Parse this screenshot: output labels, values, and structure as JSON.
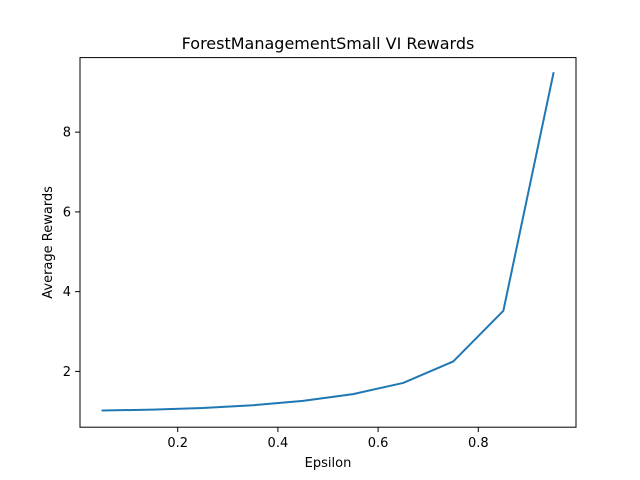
{
  "chart_data": {
    "type": "line",
    "title": "ForestManagementSmall VI Rewards",
    "xlabel": "Epsilon",
    "ylabel": "Average Rewards",
    "xlim": [
      0.005,
      0.995
    ],
    "ylim": [
      0.6,
      9.87
    ],
    "xticks": [
      0.2,
      0.4,
      0.6,
      0.8
    ],
    "xtick_labels": [
      "0.2",
      "0.4",
      "0.6",
      "0.8"
    ],
    "yticks": [
      2,
      4,
      6,
      8
    ],
    "ytick_labels": [
      "2",
      "4",
      "6",
      "8"
    ],
    "grid": false,
    "legend": "none",
    "series": [
      {
        "color": "#1f77b4",
        "x": [
          0.05,
          0.15,
          0.25,
          0.35,
          0.45,
          0.55,
          0.65,
          0.75,
          0.85,
          0.95
        ],
        "y": [
          1.02,
          1.04,
          1.08,
          1.15,
          1.26,
          1.43,
          1.71,
          2.25,
          3.52,
          9.48
        ]
      }
    ]
  }
}
